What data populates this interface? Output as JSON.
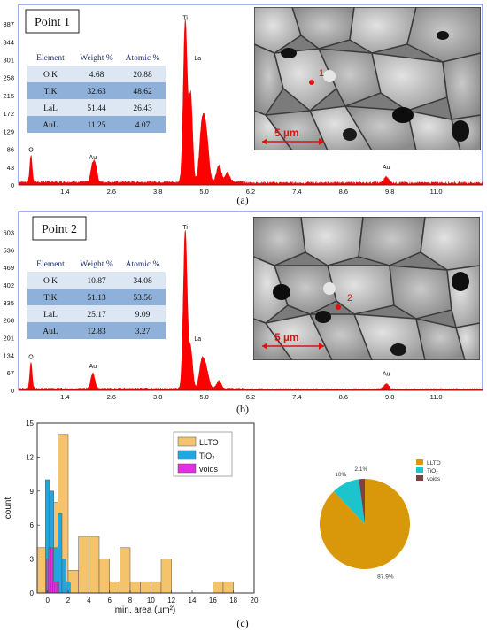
{
  "panels": {
    "a": {
      "caption": "(a)",
      "point_label": "Point 1",
      "sem_marker": "1",
      "scale_text": "5 µm",
      "y_ticks": [
        "0",
        "43",
        "86",
        "129",
        "172",
        "215",
        "258",
        "301",
        "344",
        "387"
      ],
      "x_ticks": [
        "1.4",
        "2.6",
        "3.8",
        "5.0",
        "6.2",
        "7.4",
        "8.6",
        "9.8",
        "11.0"
      ],
      "peak_labels": [
        {
          "text": "Ti",
          "kev": 4.51,
          "counts": 397
        },
        {
          "text": "La",
          "kev": 4.65,
          "counts": 300
        },
        {
          "text": "O",
          "kev": 0.52,
          "counts": 80
        },
        {
          "text": "Au",
          "kev": 2.12,
          "counts": 62
        },
        {
          "text": "Au",
          "kev": 9.71,
          "counts": 38
        }
      ],
      "table": {
        "headers": [
          "Element",
          "Weight %",
          "Atomic %"
        ],
        "rows": [
          [
            "O K",
            "4.68",
            "20.88"
          ],
          [
            "TiK",
            "32.63",
            "48.62"
          ],
          [
            "LaL",
            "51.44",
            "26.43"
          ],
          [
            "AuL",
            "11.25",
            "4.07"
          ]
        ]
      },
      "spectrum_peaks": [
        {
          "kev": 0.52,
          "counts": 65,
          "w": 0.03
        },
        {
          "kev": 2.12,
          "counts": 45,
          "w": 0.05
        },
        {
          "kev": 2.2,
          "counts": 30,
          "w": 0.04
        },
        {
          "kev": 4.51,
          "counts": 387,
          "w": 0.05
        },
        {
          "kev": 4.65,
          "counts": 210,
          "w": 0.05
        },
        {
          "kev": 4.93,
          "counts": 110,
          "w": 0.06
        },
        {
          "kev": 5.04,
          "counts": 125,
          "w": 0.07
        },
        {
          "kev": 5.38,
          "counts": 40,
          "w": 0.06
        },
        {
          "kev": 5.6,
          "counts": 25,
          "w": 0.06
        },
        {
          "kev": 9.71,
          "counts": 14,
          "w": 0.06
        }
      ]
    },
    "b": {
      "caption": "(b)",
      "point_label": "Point 2",
      "sem_marker": "2",
      "scale_text": "5 µm",
      "y_ticks": [
        "0",
        "67",
        "134",
        "201",
        "268",
        "335",
        "402",
        "469",
        "536",
        "603"
      ],
      "x_ticks": [
        "1.4",
        "2.6",
        "3.8",
        "5.0",
        "6.2",
        "7.4",
        "8.6",
        "9.8",
        "11.0"
      ],
      "peak_labels": [
        {
          "text": "Ti",
          "kev": 4.51,
          "counts": 615
        },
        {
          "text": "La",
          "kev": 4.65,
          "counts": 190
        },
        {
          "text": "O",
          "kev": 0.52,
          "counts": 120
        },
        {
          "text": "Au",
          "kev": 2.12,
          "counts": 85
        },
        {
          "text": "Au",
          "kev": 9.71,
          "counts": 55
        }
      ],
      "table": {
        "headers": [
          "Element",
          "Weight %",
          "Atomic %"
        ],
        "rows": [
          [
            "O K",
            "10.87",
            "34.08"
          ],
          [
            "TiK",
            "51.13",
            "53.56"
          ],
          [
            "LaL",
            "25.17",
            "9.09"
          ],
          [
            "AuL",
            "12.83",
            "3.27"
          ]
        ]
      },
      "spectrum_peaks": [
        {
          "kev": 0.52,
          "counts": 100,
          "w": 0.03
        },
        {
          "kev": 2.12,
          "counts": 60,
          "w": 0.05
        },
        {
          "kev": 4.51,
          "counts": 603,
          "w": 0.05
        },
        {
          "kev": 4.65,
          "counts": 150,
          "w": 0.05
        },
        {
          "kev": 4.93,
          "counts": 90,
          "w": 0.06
        },
        {
          "kev": 5.04,
          "counts": 80,
          "w": 0.07
        },
        {
          "kev": 5.38,
          "counts": 30,
          "w": 0.06
        },
        {
          "kev": 9.71,
          "counts": 20,
          "w": 0.06
        }
      ]
    },
    "c": {
      "caption": "(c)",
      "xlabel": "min. area (µm²)",
      "ylabel": "count",
      "x_ticks": [
        "0",
        "2",
        "4",
        "6",
        "8",
        "10",
        "12",
        "14",
        "16",
        "18",
        "20"
      ],
      "y_ticks": [
        "0",
        "3",
        "6",
        "9",
        "12",
        "15"
      ]
    }
  },
  "chart_data": [
    {
      "type": "area",
      "title": "",
      "x_range_kev": [
        0.2,
        12.2
      ],
      "ylim": [
        0,
        400
      ],
      "note": "EDS spectrum, Point 1"
    },
    {
      "type": "area",
      "title": "",
      "x_range_kev": [
        0.2,
        12.2
      ],
      "ylim": [
        0,
        625
      ],
      "note": "EDS spectrum, Point 2"
    },
    {
      "type": "bar",
      "xlabel": "min. area (µm²)",
      "ylabel": "count",
      "xlim": [
        -1,
        20
      ],
      "ylim": [
        0,
        15
      ],
      "legend_position": "top-right",
      "series": [
        {
          "name": "LLTO",
          "color": "#f5c36b",
          "bin_width": 1,
          "bins": [
            {
              "x0": -1,
              "count": 4
            },
            {
              "x0": 0,
              "count": 8
            },
            {
              "x0": 1,
              "count": 14
            },
            {
              "x0": 2,
              "count": 2
            },
            {
              "x0": 3,
              "count": 5
            },
            {
              "x0": 4,
              "count": 5
            },
            {
              "x0": 5,
              "count": 3
            },
            {
              "x0": 6,
              "count": 1
            },
            {
              "x0": 7,
              "count": 4
            },
            {
              "x0": 8,
              "count": 1
            },
            {
              "x0": 9,
              "count": 1
            },
            {
              "x0": 10,
              "count": 1
            },
            {
              "x0": 11,
              "count": 3
            },
            {
              "x0": 16,
              "count": 1
            },
            {
              "x0": 17,
              "count": 1
            }
          ]
        },
        {
          "name": "TiO₂",
          "color": "#1fa8e0",
          "bin_width": 0.4,
          "bins": [
            {
              "x0": -0.2,
              "count": 10
            },
            {
              "x0": 0.2,
              "count": 9
            },
            {
              "x0": 0.6,
              "count": 4
            },
            {
              "x0": 1.0,
              "count": 7
            },
            {
              "x0": 1.4,
              "count": 3
            },
            {
              "x0": 1.8,
              "count": 1
            }
          ]
        },
        {
          "name": "voids",
          "color": "#e030e0",
          "bin_width": 0.2,
          "bins": [
            {
              "x0": -0.1,
              "count": 3
            },
            {
              "x0": 0.1,
              "count": 4
            },
            {
              "x0": 0.3,
              "count": 4
            },
            {
              "x0": 0.5,
              "count": 1
            },
            {
              "x0": 0.7,
              "count": 1
            },
            {
              "x0": 0.9,
              "count": 1
            }
          ]
        }
      ]
    },
    {
      "type": "pie",
      "legend_position": "top-right",
      "slices": [
        {
          "label": "LLTO",
          "value": 87.9,
          "text": "87.9%",
          "color": "#d9980a"
        },
        {
          "label": "TiO₂",
          "value": 10,
          "text": "10%",
          "color": "#1cc4cc"
        },
        {
          "label": "voids",
          "value": 2.1,
          "text": "2.1%",
          "color": "#7d4343"
        }
      ]
    }
  ]
}
